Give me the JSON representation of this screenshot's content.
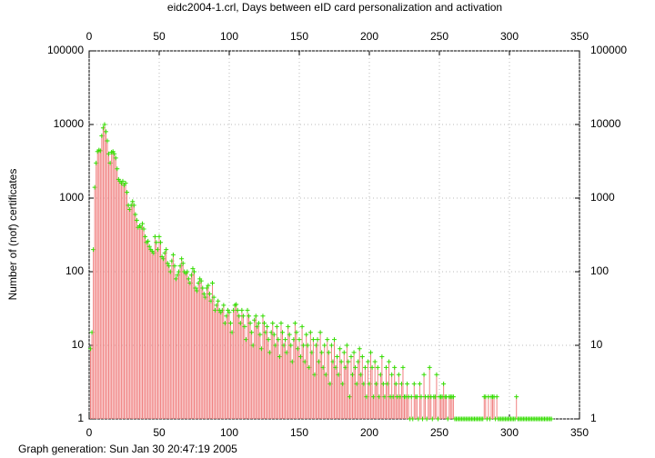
{
  "chart_data": {
    "type": "impulses",
    "title": "eidc2004-1.crl, Days between eID card personalization and activation",
    "ylabel": "Number of (nof) certificates",
    "footer": "Graph generation: Sun Jan 30 20:47:19 2005",
    "xlim": [
      0,
      350
    ],
    "xticks": [
      0,
      50,
      100,
      150,
      200,
      250,
      300,
      350
    ],
    "ylim": [
      1,
      100000
    ],
    "yticks": [
      1,
      10,
      100,
      1000,
      10000,
      100000
    ],
    "log_y": true,
    "grid": true,
    "color": "#f08080",
    "point_color": "#33dd00",
    "x": [
      1,
      2,
      3,
      4,
      5,
      6,
      7,
      8,
      9,
      10,
      11,
      12,
      13,
      14,
      15,
      16,
      17,
      18,
      19,
      20,
      21,
      22,
      23,
      24,
      25,
      26,
      27,
      28,
      29,
      30,
      31,
      32,
      33,
      34,
      35,
      36,
      37,
      38,
      39,
      40,
      41,
      42,
      43,
      44,
      45,
      46,
      47,
      48,
      49,
      50,
      51,
      52,
      53,
      54,
      55,
      56,
      57,
      58,
      59,
      60,
      61,
      62,
      63,
      64,
      65,
      66,
      67,
      68,
      69,
      70,
      71,
      72,
      73,
      74,
      75,
      76,
      77,
      78,
      79,
      80,
      81,
      82,
      83,
      84,
      85,
      86,
      87,
      88,
      89,
      90,
      91,
      92,
      93,
      94,
      95,
      96,
      97,
      98,
      99,
      100,
      101,
      102,
      103,
      104,
      105,
      106,
      107,
      108,
      109,
      110,
      111,
      112,
      113,
      114,
      115,
      116,
      117,
      118,
      119,
      120,
      121,
      122,
      123,
      124,
      125,
      126,
      127,
      128,
      129,
      130,
      131,
      132,
      133,
      134,
      135,
      136,
      137,
      138,
      139,
      140,
      141,
      142,
      143,
      144,
      145,
      146,
      147,
      148,
      149,
      150,
      151,
      152,
      153,
      154,
      155,
      156,
      157,
      158,
      159,
      160,
      161,
      162,
      163,
      164,
      165,
      166,
      167,
      168,
      169,
      170,
      171,
      172,
      173,
      174,
      175,
      176,
      177,
      178,
      179,
      180,
      181,
      182,
      183,
      184,
      185,
      186,
      187,
      188,
      189,
      190,
      191,
      192,
      193,
      194,
      195,
      196,
      197,
      198,
      199,
      200,
      201,
      202,
      203,
      204,
      205,
      206,
      207,
      208,
      209,
      210,
      211,
      212,
      213,
      214,
      215,
      216,
      217,
      218,
      219,
      220,
      221,
      222,
      223,
      224,
      225,
      226,
      227,
      228,
      229,
      230,
      231,
      232,
      233,
      234,
      235,
      236,
      237,
      238,
      239,
      240,
      241,
      242,
      243,
      244,
      245,
      246,
      247,
      248,
      249,
      250,
      251,
      252,
      253,
      254,
      255,
      256,
      257,
      258,
      259,
      260,
      261,
      262,
      263,
      264,
      265,
      266,
      267,
      268,
      269,
      270,
      271,
      272,
      273,
      274,
      275,
      276,
      277,
      278,
      279,
      280,
      281,
      282,
      283,
      284,
      285,
      286,
      287,
      288,
      289,
      290,
      291,
      292,
      293,
      294,
      295,
      296,
      297,
      298,
      299,
      300,
      301,
      302,
      303,
      304,
      305,
      306,
      307,
      308,
      309,
      310,
      311,
      312,
      313,
      314,
      315,
      316,
      317,
      318,
      319,
      320,
      321,
      322,
      323,
      324,
      325,
      326,
      327,
      328,
      329,
      330
    ],
    "values": [
      9,
      15,
      200,
      1400,
      3000,
      4300,
      4500,
      4400,
      7000,
      9000,
      10000,
      8000,
      6000,
      4000,
      3000,
      4200,
      4300,
      4000,
      3500,
      2500,
      1800,
      1700,
      1600,
      1700,
      1500,
      1600,
      1200,
      800,
      700,
      800,
      900,
      800,
      600,
      500,
      400,
      420,
      400,
      450,
      380,
      300,
      250,
      260,
      220,
      200,
      190,
      180,
      300,
      250,
      200,
      300,
      250,
      160,
      150,
      180,
      200,
      130,
      120,
      100,
      140,
      170,
      120,
      80,
      90,
      100,
      120,
      150,
      130,
      100,
      95,
      100,
      80,
      70,
      90,
      110,
      100,
      60,
      55,
      70,
      80,
      75,
      60,
      50,
      45,
      60,
      65,
      50,
      40,
      70,
      45,
      30,
      35,
      40,
      30,
      28,
      30,
      35,
      20,
      25,
      30,
      28,
      20,
      15,
      30,
      35,
      36,
      30,
      25,
      20,
      30,
      25,
      18,
      12,
      30,
      25,
      20,
      15,
      10,
      22,
      25,
      18,
      20,
      14,
      9,
      25,
      20,
      15,
      18,
      12,
      8,
      15,
      20,
      14,
      10,
      18,
      12,
      7,
      20,
      15,
      10,
      12,
      8,
      18,
      14,
      10,
      6,
      12,
      20,
      15,
      9,
      12,
      7,
      18,
      10,
      6,
      14,
      10,
      5,
      15,
      8,
      12,
      4,
      10,
      12,
      6,
      15,
      8,
      5,
      10,
      4,
      12,
      8,
      3,
      10,
      6,
      12,
      5,
      7,
      4,
      9,
      6,
      3,
      8,
      5,
      10,
      6,
      2,
      7,
      4,
      8,
      5,
      3,
      6,
      9,
      4,
      7,
      3,
      5,
      2,
      6,
      3,
      8,
      5,
      2,
      6,
      3,
      5,
      2,
      4,
      7,
      3,
      2,
      5,
      3,
      6,
      2,
      4,
      2,
      5,
      3,
      2,
      4,
      2,
      3,
      5,
      2,
      2,
      3,
      2,
      1,
      2,
      1,
      3,
      2,
      2,
      1,
      3,
      2,
      1,
      4,
      2,
      1,
      2,
      5,
      2,
      1,
      2,
      2,
      4,
      1,
      2,
      2,
      2,
      3,
      2,
      2,
      1,
      2,
      2,
      2,
      2,
      1,
      1,
      1,
      1,
      1,
      1,
      1,
      1,
      1,
      1,
      1,
      1,
      1,
      1,
      1,
      1,
      1,
      1,
      1,
      1,
      1,
      2,
      2,
      1,
      2,
      1,
      2,
      2,
      2,
      1,
      2,
      1,
      1,
      1,
      1,
      1,
      1,
      1,
      1,
      1,
      1,
      1,
      1,
      1,
      2,
      1,
      1,
      1,
      1,
      1,
      1,
      1,
      1,
      1,
      1,
      1,
      1,
      1,
      1,
      1,
      1,
      1,
      1,
      1,
      1,
      1,
      1,
      1,
      1,
      1
    ]
  }
}
